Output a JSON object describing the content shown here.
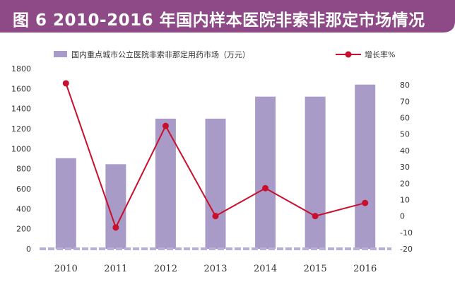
{
  "title": "图 6  2010-2016 年国内样本医院非索非那定市场情况",
  "colors": {
    "banner": "#8e4a86",
    "bar": "#a99bc8",
    "line": "#c8102e",
    "axis": "#b8b0d6"
  },
  "chart_data": {
    "type": "bar+line",
    "categories": [
      "2010",
      "2011",
      "2012",
      "2013",
      "2014",
      "2015",
      "2016"
    ],
    "series": [
      {
        "name": "国内重点城市公立医院非索非那定用药市场（万元）",
        "type": "bar",
        "axis": "left",
        "values": [
          905,
          845,
          1300,
          1300,
          1520,
          1520,
          1640
        ]
      },
      {
        "name": "增长率%",
        "type": "line",
        "axis": "right",
        "values": [
          81,
          -7,
          55,
          0,
          17,
          0,
          8
        ]
      }
    ],
    "y_left": {
      "ylim": [
        0,
        1800
      ],
      "ticks": [
        "0",
        "200",
        "400",
        "600",
        "800",
        "1000",
        "1200",
        "1400",
        "1600",
        "1800"
      ]
    },
    "y_right": {
      "ylim": [
        -20,
        90
      ],
      "ticks": [
        "-20",
        "-10",
        "0",
        "10",
        "20",
        "30",
        "40",
        "50",
        "60",
        "70",
        "80"
      ]
    },
    "legend_position": "top"
  }
}
